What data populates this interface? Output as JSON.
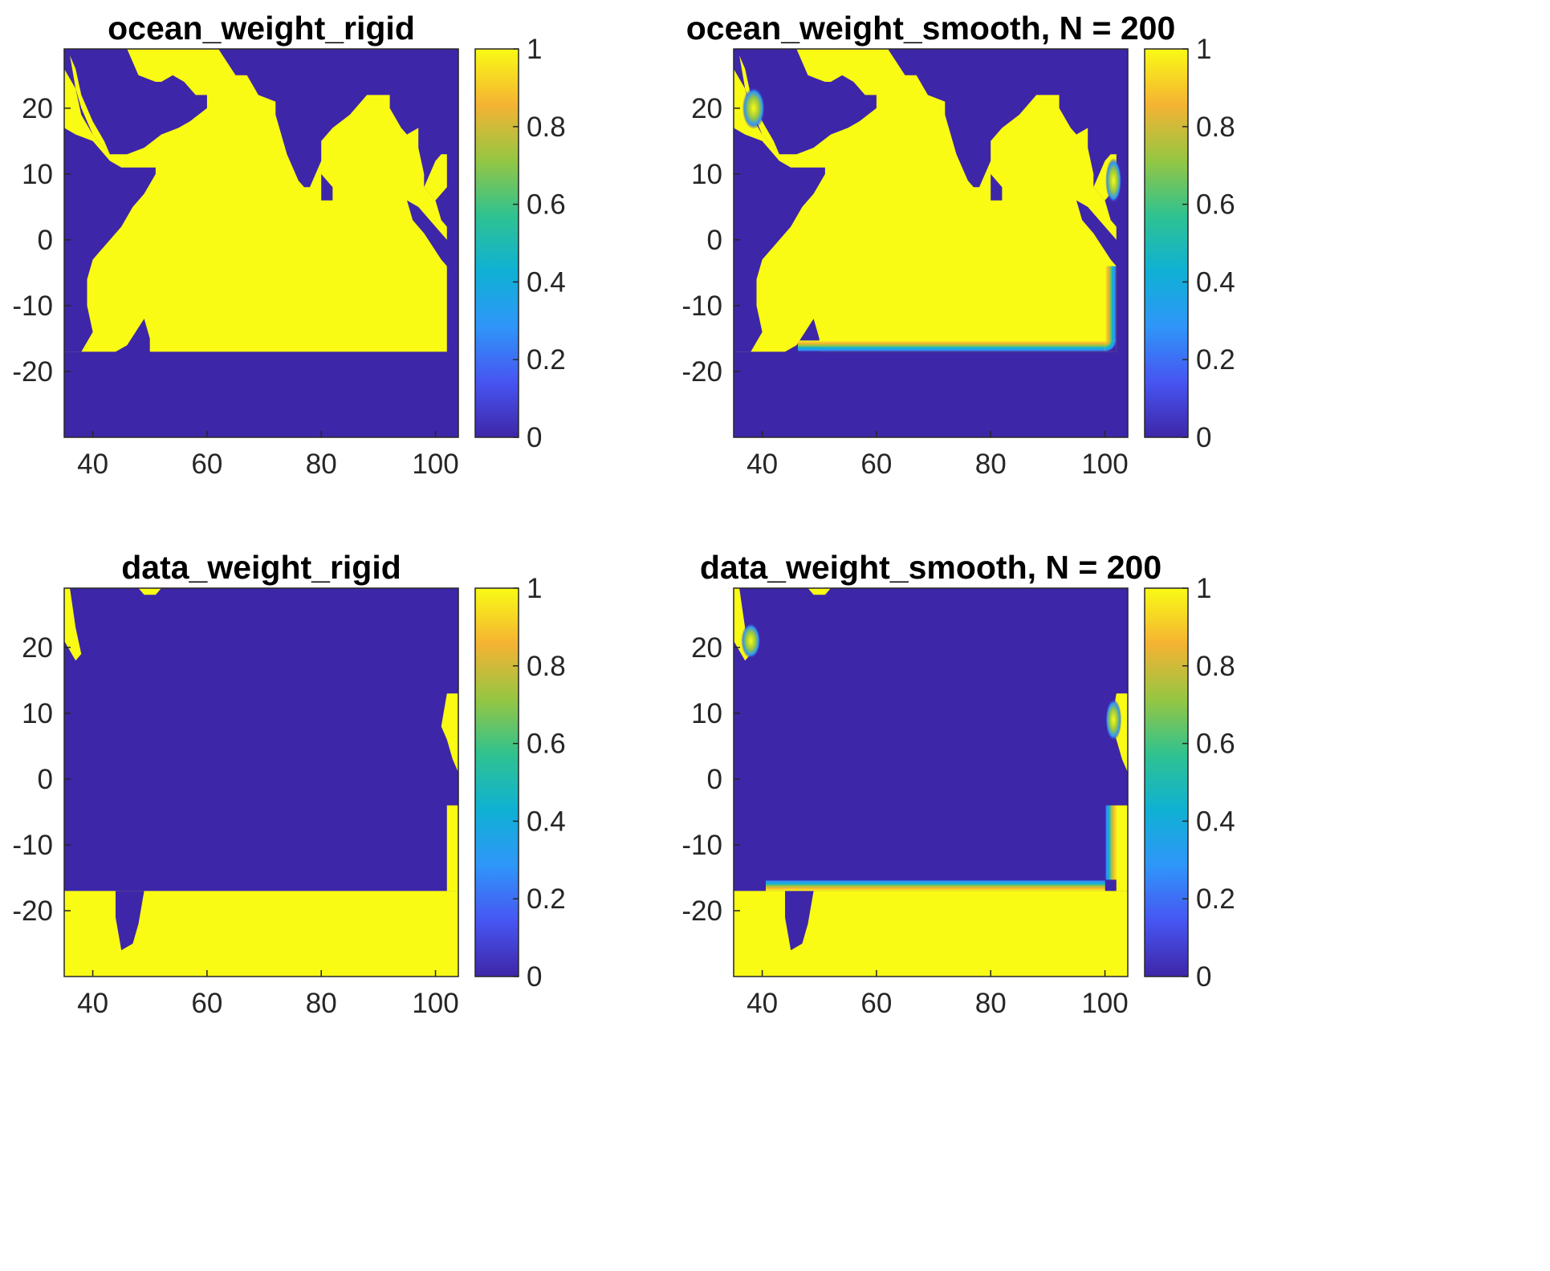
{
  "colormap": {
    "name": "parula",
    "stops": [
      "#3e26a8",
      "#4755f2",
      "#2f96f9",
      "#0fb1d4",
      "#2fc290",
      "#96c642",
      "#f5b333",
      "#f9fb15"
    ],
    "ocean_color": "#3e26a8",
    "land_color": "#f9fb15"
  },
  "chart_data": [
    {
      "type": "heatmap",
      "title": "ocean_weight_rigid",
      "xlim": [
        35,
        104
      ],
      "ylim": [
        -30,
        29
      ],
      "xticks": [
        40,
        60,
        80,
        100
      ],
      "yticks": [
        20,
        10,
        0,
        -10,
        -20
      ],
      "colorbar": {
        "range": [
          0,
          1
        ],
        "ticks": [
          1,
          0.8,
          0.6,
          0.4,
          0.2,
          0
        ]
      },
      "domain_south_edge_lat": -17,
      "domain_east_edge_lon": 102,
      "smoothing_n": null,
      "values": "1 over Indian Ocean water north of -17 and west of 102E; 0 over land and outside domain"
    },
    {
      "type": "heatmap",
      "title": "ocean_weight_smooth, N = 200",
      "xlim": [
        35,
        104
      ],
      "ylim": [
        -30,
        29
      ],
      "xticks": [
        40,
        60,
        80,
        100
      ],
      "yticks": [
        20,
        10,
        0,
        -10,
        -20
      ],
      "colorbar": {
        "range": [
          0,
          1
        ],
        "ticks": [
          1,
          0.8,
          0.6,
          0.4,
          0.2,
          0
        ]
      },
      "domain_south_edge_lat": -17,
      "domain_east_edge_lon": 102,
      "smoothing_n": 200,
      "values": "ocean_weight_rigid with a smooth 1-to-0 transition along the southern and eastern domain boundaries"
    },
    {
      "type": "heatmap",
      "title": "data_weight_rigid",
      "xlim": [
        35,
        104
      ],
      "ylim": [
        -30,
        29
      ],
      "xticks": [
        40,
        60,
        80,
        100
      ],
      "yticks": [
        20,
        10,
        0,
        -10,
        -20
      ],
      "colorbar": {
        "range": [
          0,
          1
        ],
        "ticks": [
          1,
          0.8,
          0.6,
          0.4,
          0.2,
          0
        ]
      },
      "domain_south_edge_lat": -17,
      "domain_east_edge_lon": 102,
      "smoothing_n": null,
      "values": "complement of the ocean weight outside land: 1 south of -17 and east of 102E, 0 inside domain and over land"
    },
    {
      "type": "heatmap",
      "title": "data_weight_smooth, N = 200",
      "xlim": [
        35,
        104
      ],
      "ylim": [
        -30,
        29
      ],
      "xticks": [
        40,
        60,
        80,
        100
      ],
      "yticks": [
        20,
        10,
        0,
        -10,
        -20
      ],
      "colorbar": {
        "range": [
          0,
          1
        ],
        "ticks": [
          1,
          0.8,
          0.6,
          0.4,
          0.2,
          0
        ]
      },
      "domain_south_edge_lat": -17,
      "domain_east_edge_lon": 102,
      "smoothing_n": 200,
      "values": "data_weight_rigid with a smooth 0-to-1 transition along the southern and eastern domain boundaries"
    }
  ]
}
